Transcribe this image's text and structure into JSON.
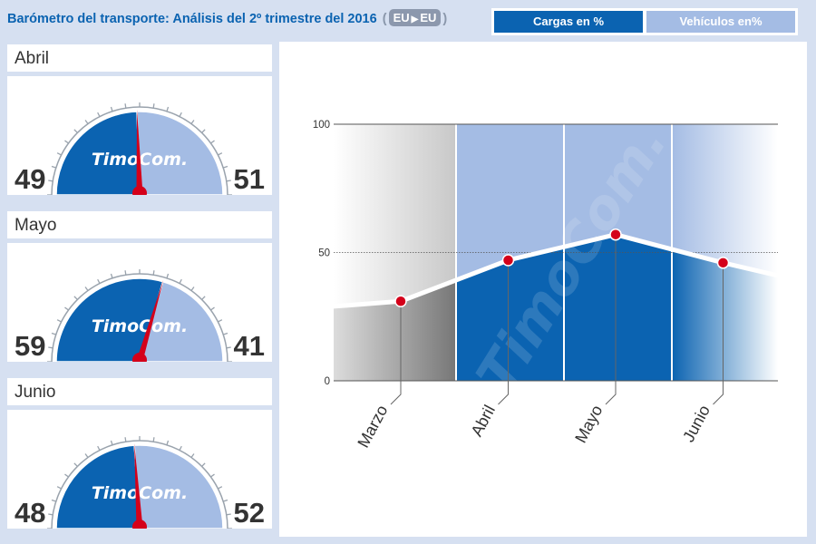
{
  "header": {
    "title": "Barómetro del transporte: Análisis del 2º trimestre del  2016",
    "route_from": "EU",
    "route_to": "EU"
  },
  "tabs": [
    {
      "label": "Cargas en %",
      "active": true
    },
    {
      "label": "Vehículos en%",
      "active": false
    }
  ],
  "gauges": [
    {
      "month": "Abril",
      "left_value": "49",
      "right_value": "51",
      "logo": "TimoCom."
    },
    {
      "month": "Mayo",
      "left_value": "59",
      "right_value": "41",
      "logo": "TimoCom."
    },
    {
      "month": "Junio",
      "left_value": "48",
      "right_value": "52",
      "logo": "TimoCom."
    }
  ],
  "colors": {
    "primary_blue": "#0b63b1",
    "light_blue": "#a4bce4",
    "needle_red": "#d4001a",
    "background": "#d6e0f1"
  },
  "chart_data": {
    "type": "line",
    "categories": [
      "Marzo",
      "Abril",
      "Mayo",
      "Junio"
    ],
    "values": [
      31,
      47,
      57,
      46
    ],
    "ylim": [
      0,
      100
    ],
    "yticks": [
      "0",
      "50",
      "100"
    ],
    "grid": true,
    "watermark": "TimoCom."
  }
}
